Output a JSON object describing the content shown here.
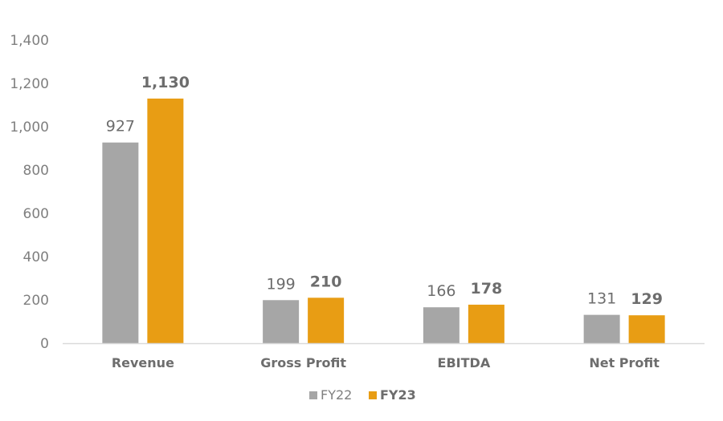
{
  "chart_data": {
    "type": "bar",
    "categories": [
      "Revenue",
      "Gross Profit",
      "EBITDA",
      "Net Profit"
    ],
    "series": [
      {
        "name": "FY22",
        "values": [
          927,
          199,
          166,
          131
        ],
        "value_labels": [
          "927",
          "199",
          "166",
          "131"
        ],
        "color": "#a6a6a6"
      },
      {
        "name": "FY23",
        "values": [
          1130,
          210,
          178,
          129
        ],
        "value_labels": [
          "1,130",
          "210",
          "178",
          "129"
        ],
        "color": "#e89d14"
      }
    ],
    "ylim": [
      0,
      1400
    ],
    "yticks": [
      0,
      200,
      400,
      600,
      800,
      1000,
      1200,
      1400
    ],
    "ytick_labels": [
      "0",
      "200",
      "400",
      "600",
      "800",
      "1,000",
      "1,200",
      "1,400"
    ],
    "legend_position": "bottom",
    "grid": false,
    "axis_color": "#d9d9d9",
    "text_color": "#6d6d6d"
  }
}
